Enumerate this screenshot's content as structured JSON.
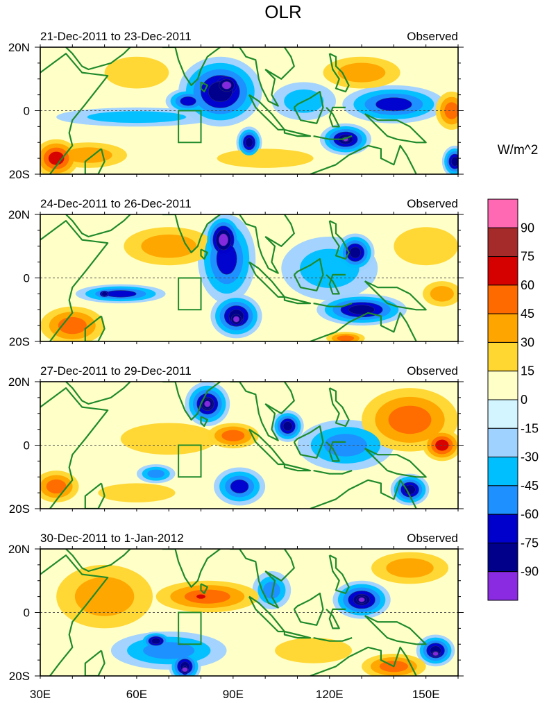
{
  "chart_data": {
    "type": "heatmap",
    "title": "OLR",
    "units": "W/m^2",
    "x_axis": {
      "range": [
        30,
        160
      ],
      "ticks": [
        30,
        60,
        90,
        120,
        150
      ],
      "tick_labels": [
        "30E",
        "60E",
        "90E",
        "120E",
        "150E"
      ]
    },
    "y_axis": {
      "range": [
        -20,
        20
      ],
      "ticks": [
        20,
        0,
        -20
      ],
      "tick_labels": [
        "20N",
        "0",
        "20S"
      ]
    },
    "colorbar": {
      "labels": [
        "90",
        "75",
        "60",
        "45",
        "30",
        "15",
        "0",
        "-15",
        "-30",
        "-45",
        "-60",
        "-75",
        "-90"
      ],
      "colors": [
        "#ff69b4",
        "#a52a2a",
        "#d50000",
        "#ff6a00",
        "#ffa500",
        "#ffd730",
        "#ffffc8",
        "#d2f5ff",
        "#a0d2ff",
        "#00bfff",
        "#1e90ff",
        "#0000cd",
        "#00008b",
        "#8a2be2"
      ]
    },
    "panels": [
      {
        "date_range": "21-Dec-2011 to 23-Dec-2011",
        "label": "Observed",
        "blobs": [
          {
            "lon": 86,
            "lat": 6,
            "rlon": 13,
            "rlat": 11,
            "v": -75
          },
          {
            "lon": 88,
            "lat": 8,
            "rlon": 6,
            "rlat": 5,
            "v": -90
          },
          {
            "lon": 76,
            "lat": 3,
            "rlon": 7,
            "rlat": 4,
            "v": -60
          },
          {
            "lon": 95,
            "lat": -10,
            "rlon": 4,
            "rlat": 5,
            "v": -75
          },
          {
            "lon": 125,
            "lat": -9,
            "rlon": 8,
            "rlat": 5,
            "v": -75
          },
          {
            "lon": 125,
            "lat": -9,
            "rlon": 3,
            "rlat": 2,
            "v": -90
          },
          {
            "lon": 140,
            "lat": 2,
            "rlon": 16,
            "rlat": 6,
            "v": -60
          },
          {
            "lon": 159,
            "lat": -16,
            "rlon": 4,
            "rlat": 5,
            "v": -75
          },
          {
            "lon": 60,
            "lat": -2,
            "rlon": 25,
            "rlat": 3,
            "v": -30
          },
          {
            "lon": 35,
            "lat": -15,
            "rlon": 7,
            "rlat": 6,
            "v": 60
          },
          {
            "lon": 45,
            "lat": -14,
            "rlon": 12,
            "rlat": 4,
            "v": 30
          },
          {
            "lon": 130,
            "lat": 12,
            "rlon": 12,
            "rlat": 5,
            "v": 30
          },
          {
            "lon": 158,
            "lat": 0,
            "rlon": 5,
            "rlat": 6,
            "v": 45
          },
          {
            "lon": 100,
            "lat": -15,
            "rlon": 15,
            "rlat": 3,
            "v": 15
          },
          {
            "lon": 60,
            "lat": 12,
            "rlon": 10,
            "rlat": 5,
            "v": 15
          },
          {
            "lon": 112,
            "lat": 3,
            "rlon": 10,
            "rlat": 6,
            "v": -30
          }
        ]
      },
      {
        "date_range": "24-Dec-2011 to 26-Dec-2011",
        "label": "Observed",
        "blobs": [
          {
            "lon": 87,
            "lat": 12,
            "rlon": 6,
            "rlat": 8,
            "v": -90
          },
          {
            "lon": 88,
            "lat": 6,
            "rlon": 9,
            "rlat": 14,
            "v": -60
          },
          {
            "lon": 91,
            "lat": -12,
            "rlon": 8,
            "rlat": 7,
            "v": -75
          },
          {
            "lon": 91,
            "lat": -13,
            "rlon": 4,
            "rlat": 4,
            "v": -90
          },
          {
            "lon": 55,
            "lat": -5,
            "rlon": 14,
            "rlat": 3,
            "v": -60
          },
          {
            "lon": 50,
            "lat": -5,
            "rlon": 3,
            "rlat": 2,
            "v": -75
          },
          {
            "lon": 128,
            "lat": 8,
            "rlon": 6,
            "rlat": 6,
            "v": -75
          },
          {
            "lon": 130,
            "lat": -10,
            "rlon": 14,
            "rlat": 5,
            "v": -75
          },
          {
            "lon": 120,
            "lat": 3,
            "rlon": 15,
            "rlat": 10,
            "v": -30
          },
          {
            "lon": 40,
            "lat": -15,
            "rlon": 10,
            "rlat": 6,
            "v": 45
          },
          {
            "lon": 70,
            "lat": 10,
            "rlon": 14,
            "rlat": 6,
            "v": 30
          },
          {
            "lon": 150,
            "lat": 10,
            "rlon": 10,
            "rlat": 6,
            "v": 15
          },
          {
            "lon": 155,
            "lat": -5,
            "rlon": 6,
            "rlat": 4,
            "v": 30
          },
          {
            "lon": 125,
            "lat": -19,
            "rlon": 6,
            "rlat": 2,
            "v": 45
          }
        ]
      },
      {
        "date_range": "27-Dec-2011 to 29-Dec-2011",
        "label": "Observed",
        "blobs": [
          {
            "lon": 82,
            "lat": 13,
            "rlon": 7,
            "rlat": 7,
            "v": -75
          },
          {
            "lon": 82,
            "lat": 13,
            "rlon": 4,
            "rlat": 4,
            "v": -90
          },
          {
            "lon": 107,
            "lat": 6,
            "rlon": 5,
            "rlat": 5,
            "v": -75
          },
          {
            "lon": 92,
            "lat": -13,
            "rlon": 8,
            "rlat": 6,
            "v": -60
          },
          {
            "lon": 145,
            "lat": -14,
            "rlon": 6,
            "rlat": 5,
            "v": -75
          },
          {
            "lon": 125,
            "lat": 0,
            "rlon": 15,
            "rlat": 8,
            "v": -45
          },
          {
            "lon": 66,
            "lat": -9,
            "rlon": 6,
            "rlat": 3,
            "v": -45
          },
          {
            "lon": 145,
            "lat": 8,
            "rlon": 15,
            "rlat": 10,
            "v": 45
          },
          {
            "lon": 155,
            "lat": 0,
            "rlon": 6,
            "rlat": 5,
            "v": 60
          },
          {
            "lon": 90,
            "lat": 3,
            "rlon": 8,
            "rlat": 4,
            "v": 45
          },
          {
            "lon": 35,
            "lat": -13,
            "rlon": 7,
            "rlat": 5,
            "v": 45
          },
          {
            "lon": 70,
            "lat": 2,
            "rlon": 15,
            "rlat": 5,
            "v": 15
          },
          {
            "lon": 60,
            "lat": -15,
            "rlon": 12,
            "rlat": 3,
            "v": 15
          }
        ]
      },
      {
        "date_range": "30-Dec-2011 to 1-Jan-2012",
        "label": "Observed",
        "blobs": [
          {
            "lon": 130,
            "lat": 4,
            "rlon": 9,
            "rlat": 6,
            "v": -75
          },
          {
            "lon": 130,
            "lat": 4,
            "rlon": 4,
            "rlat": 3,
            "v": -90
          },
          {
            "lon": 75,
            "lat": -17,
            "rlon": 5,
            "rlat": 5,
            "v": -75
          },
          {
            "lon": 75,
            "lat": -18,
            "rlon": 2,
            "rlat": 3,
            "v": -90
          },
          {
            "lon": 66,
            "lat": -9,
            "rlon": 5,
            "rlat": 3,
            "v": -75
          },
          {
            "lon": 153,
            "lat": -12,
            "rlon": 6,
            "rlat": 5,
            "v": -75
          },
          {
            "lon": 153,
            "lat": -13,
            "rlon": 3,
            "rlat": 2,
            "v": -90
          },
          {
            "lon": 70,
            "lat": -12,
            "rlon": 18,
            "rlat": 6,
            "v": -45
          },
          {
            "lon": 102,
            "lat": 7,
            "rlon": 6,
            "rlat": 6,
            "v": -45
          },
          {
            "lon": 82,
            "lat": 5,
            "rlon": 16,
            "rlat": 5,
            "v": 45
          },
          {
            "lon": 80,
            "lat": 5,
            "rlon": 4,
            "rlat": 2,
            "v": 60
          },
          {
            "lon": 140,
            "lat": -17,
            "rlon": 10,
            "rlat": 4,
            "v": 45
          },
          {
            "lon": 50,
            "lat": 5,
            "rlon": 15,
            "rlat": 10,
            "v": 30
          },
          {
            "lon": 145,
            "lat": 14,
            "rlon": 12,
            "rlat": 5,
            "v": 30
          },
          {
            "lon": 115,
            "lat": -12,
            "rlon": 12,
            "rlat": 4,
            "v": 15
          }
        ]
      }
    ]
  }
}
